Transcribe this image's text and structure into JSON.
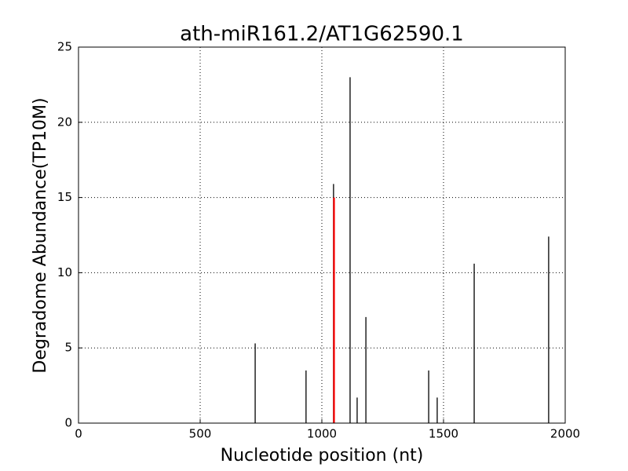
{
  "chart_data": {
    "type": "stem",
    "title": "ath-miR161.2/AT1G62590.1",
    "xlabel": "Nucleotide position (nt)",
    "ylabel": "Degradome Abundance(TP10M)",
    "series": [
      {
        "color": "#000000",
        "x": [
          726,
          935,
          1048,
          1116,
          1145,
          1181,
          1439,
          1474,
          1626,
          1932
        ],
        "values": [
          5.3,
          3.5,
          15.9,
          23.0,
          1.7,
          7.05,
          3.5,
          1.7,
          10.6,
          12.4
        ]
      },
      {
        "color": "#ff0000",
        "x": [
          1050
        ],
        "values": [
          15.0
        ]
      }
    ],
    "xlim": [
      0,
      2000
    ],
    "xticks": [
      0,
      500,
      1000,
      1500,
      2000
    ],
    "ylim": [
      0,
      25
    ],
    "yticks": [
      0,
      5,
      10,
      15,
      20,
      25
    ],
    "grid": true
  }
}
